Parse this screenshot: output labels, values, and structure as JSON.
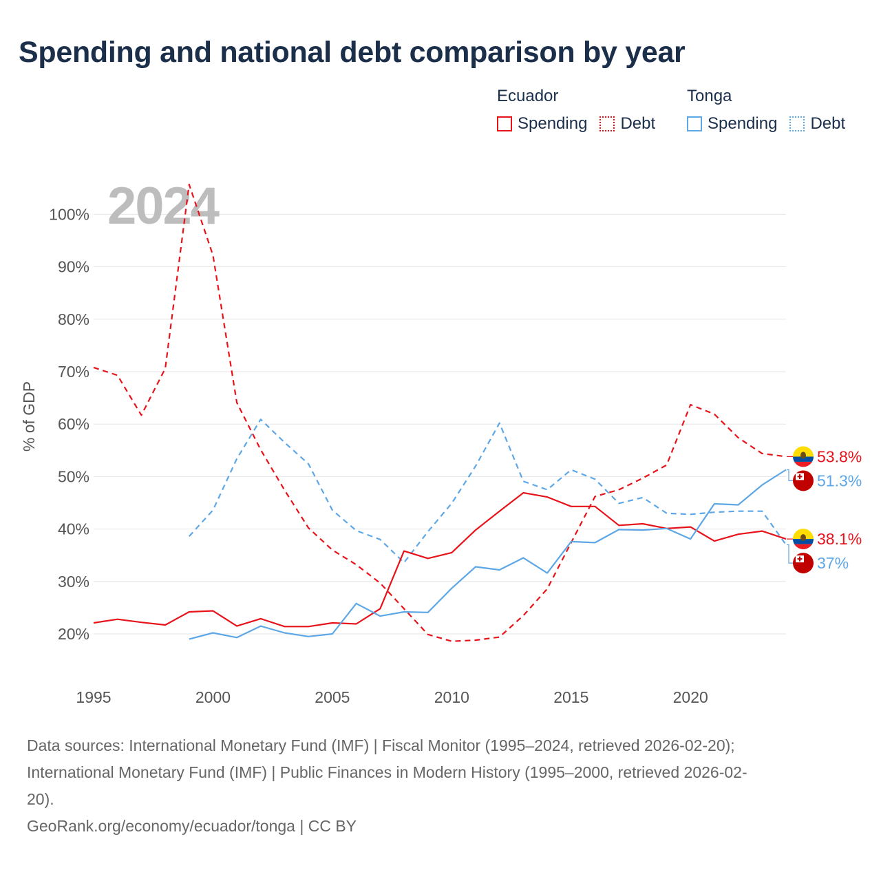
{
  "title": "Spending and national debt comparison by year",
  "legend": {
    "groups": [
      {
        "name": "Ecuador",
        "items": [
          {
            "label": "Spending",
            "style": "solid"
          },
          {
            "label": "Debt",
            "style": "dotted"
          }
        ],
        "color": "#e8131a"
      },
      {
        "name": "Tonga",
        "items": [
          {
            "label": "Spending",
            "style": "solid"
          },
          {
            "label": "Debt",
            "style": "dotted"
          }
        ],
        "color": "#5ea7e6"
      }
    ]
  },
  "year_watermark": "2024",
  "colors": {
    "ecuador": "#e8131a",
    "tonga": "#5ea7e6",
    "grid": "#e6e6e6",
    "axis_text": "#555555"
  },
  "chart_data": {
    "type": "line",
    "ylabel": "% of GDP",
    "xlabel": "",
    "xlim": [
      1995,
      2024
    ],
    "ylim": [
      10,
      105
    ],
    "x_ticks": [
      1995,
      2000,
      2005,
      2010,
      2015,
      2020
    ],
    "y_ticks": [
      20,
      30,
      40,
      50,
      60,
      70,
      80,
      90,
      100
    ],
    "y_tick_labels": [
      "20%",
      "30%",
      "40%",
      "50%",
      "60%",
      "70%",
      "80%",
      "90%",
      "100%"
    ],
    "series": [
      {
        "name": "Ecuador Debt",
        "country": "Ecuador",
        "measure": "Debt",
        "style": "dashed",
        "x": [
          1995,
          1996,
          1997,
          1998,
          1999,
          2000,
          2001,
          2002,
          2003,
          2004,
          2005,
          2006,
          2007,
          2008,
          2009,
          2010,
          2011,
          2012,
          2013,
          2014,
          2015,
          2016,
          2017,
          2018,
          2019,
          2020,
          2021,
          2022,
          2023,
          2024
        ],
        "values": [
          70.8,
          69.3,
          61.7,
          70.6,
          105.7,
          92.2,
          64.1,
          55.1,
          47.4,
          40.2,
          36.0,
          33.2,
          29.7,
          24.8,
          19.9,
          18.6,
          18.8,
          19.4,
          23.5,
          28.6,
          37.4,
          46.2,
          47.5,
          49.7,
          52.2,
          63.7,
          61.9,
          57.4,
          54.4,
          53.8
        ],
        "end_label": "53.8%"
      },
      {
        "name": "Tonga Debt",
        "country": "Tonga",
        "measure": "Debt",
        "style": "dashed",
        "x": [
          1999,
          2000,
          2001,
          2002,
          2003,
          2004,
          2005,
          2006,
          2007,
          2008,
          2009,
          2010,
          2011,
          2012,
          2013,
          2014,
          2015,
          2016,
          2017,
          2018,
          2019,
          2020,
          2021,
          2022,
          2023,
          2024
        ],
        "values": [
          38.6,
          43.6,
          53.4,
          60.9,
          56.5,
          52.4,
          43.6,
          39.7,
          38.0,
          33.6,
          39.5,
          44.9,
          52.0,
          60.2,
          49.1,
          47.5,
          51.3,
          49.5,
          44.9,
          46.0,
          43.0,
          42.8,
          43.2,
          43.4,
          43.4,
          37.0
        ],
        "end_label": "37%"
      },
      {
        "name": "Ecuador Spending",
        "country": "Ecuador",
        "measure": "Spending",
        "style": "solid",
        "x": [
          1995,
          1996,
          1997,
          1998,
          1999,
          2000,
          2001,
          2002,
          2003,
          2004,
          2005,
          2006,
          2007,
          2008,
          2009,
          2010,
          2011,
          2012,
          2013,
          2014,
          2015,
          2016,
          2017,
          2018,
          2019,
          2020,
          2021,
          2022,
          2023,
          2024
        ],
        "values": [
          22.1,
          22.8,
          22.2,
          21.7,
          24.2,
          24.4,
          21.5,
          22.9,
          21.4,
          21.4,
          22.1,
          21.9,
          24.8,
          35.8,
          34.4,
          35.5,
          39.8,
          43.4,
          46.9,
          46.1,
          44.3,
          44.3,
          40.7,
          41.0,
          40.1,
          40.4,
          37.7,
          39.0,
          39.6,
          38.1
        ],
        "end_label": "38.1%"
      },
      {
        "name": "Tonga Spending",
        "country": "Tonga",
        "measure": "Spending",
        "style": "solid",
        "x": [
          1999,
          2000,
          2001,
          2002,
          2003,
          2004,
          2005,
          2006,
          2007,
          2008,
          2009,
          2010,
          2011,
          2012,
          2013,
          2014,
          2015,
          2016,
          2017,
          2018,
          2019,
          2020,
          2021,
          2022,
          2023,
          2024
        ],
        "values": [
          19.0,
          20.2,
          19.3,
          21.5,
          20.2,
          19.5,
          20.0,
          25.8,
          23.4,
          24.2,
          24.1,
          28.7,
          32.8,
          32.2,
          34.5,
          31.6,
          37.6,
          37.4,
          39.9,
          39.8,
          40.1,
          38.1,
          44.8,
          44.6,
          48.4,
          51.3
        ],
        "end_label": "51.3%"
      }
    ]
  },
  "sources": {
    "line1": "Data sources: International Monetary Fund (IMF) | Fiscal Monitor (1995–2024, retrieved 2026-02-20);",
    "line2": "International Monetary Fund (IMF) | Public Finances in Modern History (1995–2000, retrieved 2026-02-",
    "line3": "20).",
    "line4": "GeoRank.org/economy/ecuador/tonga | CC BY"
  }
}
